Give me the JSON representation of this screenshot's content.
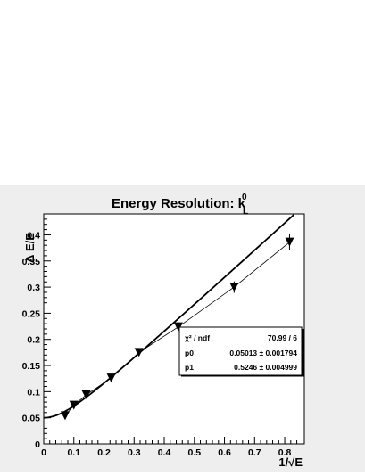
{
  "chart_data": {
    "type": "scatter",
    "title": "Energy Resolution: k",
    "title_superscript": "0",
    "title_subscript": "L",
    "xlabel": "1/√E",
    "ylabel": "Δ E/E",
    "xlim": [
      0,
      0.865
    ],
    "ylim": [
      0,
      0.44
    ],
    "x_ticks": [
      0,
      0.1,
      0.2,
      0.3,
      0.4,
      0.5,
      0.6,
      0.7,
      0.8
    ],
    "x_tick_labels": [
      "0",
      "0.1",
      "0.2",
      "0.3",
      "0.4",
      "0.5",
      "0.6",
      "0.7",
      "0.8"
    ],
    "y_ticks": [
      0,
      0.05,
      0.1,
      0.15,
      0.2,
      0.25,
      0.3,
      0.35,
      0.4
    ],
    "y_tick_labels": [
      "0",
      "0.05",
      "0.1",
      "0.15",
      "0.2",
      "0.25",
      "0.3",
      "0.35",
      "0.4"
    ],
    "grid": false,
    "series": [
      {
        "marker": "down-triangle",
        "points": [
          {
            "x": 0.071,
            "y": 0.054,
            "err": 0.002
          },
          {
            "x": 0.1,
            "y": 0.074,
            "err": 0.002
          },
          {
            "x": 0.141,
            "y": 0.094,
            "err": 0.002
          },
          {
            "x": 0.224,
            "y": 0.126,
            "err": 0.003
          },
          {
            "x": 0.316,
            "y": 0.175,
            "err": 0.003
          },
          {
            "x": 0.447,
            "y": 0.224,
            "err": 0.004
          },
          {
            "x": 0.632,
            "y": 0.3,
            "err": 0.011
          },
          {
            "x": 0.816,
            "y": 0.386,
            "err": 0.016
          }
        ]
      }
    ],
    "fit": {
      "p0": 0.05013,
      "p1": 0.5246
    },
    "stats_box": {
      "rows": [
        {
          "label": "χ² / ndf",
          "value": "70.99 / 6"
        },
        {
          "label": "p0",
          "value": "0.05013 ± 0.001794"
        },
        {
          "label": "p1",
          "value": "0.5246 ± 0.004999"
        }
      ],
      "position": "lower-right"
    },
    "colors": {
      "frame_bg": "#eeeeee",
      "plot_bg": "#ffffff",
      "ink": "#000000"
    }
  }
}
